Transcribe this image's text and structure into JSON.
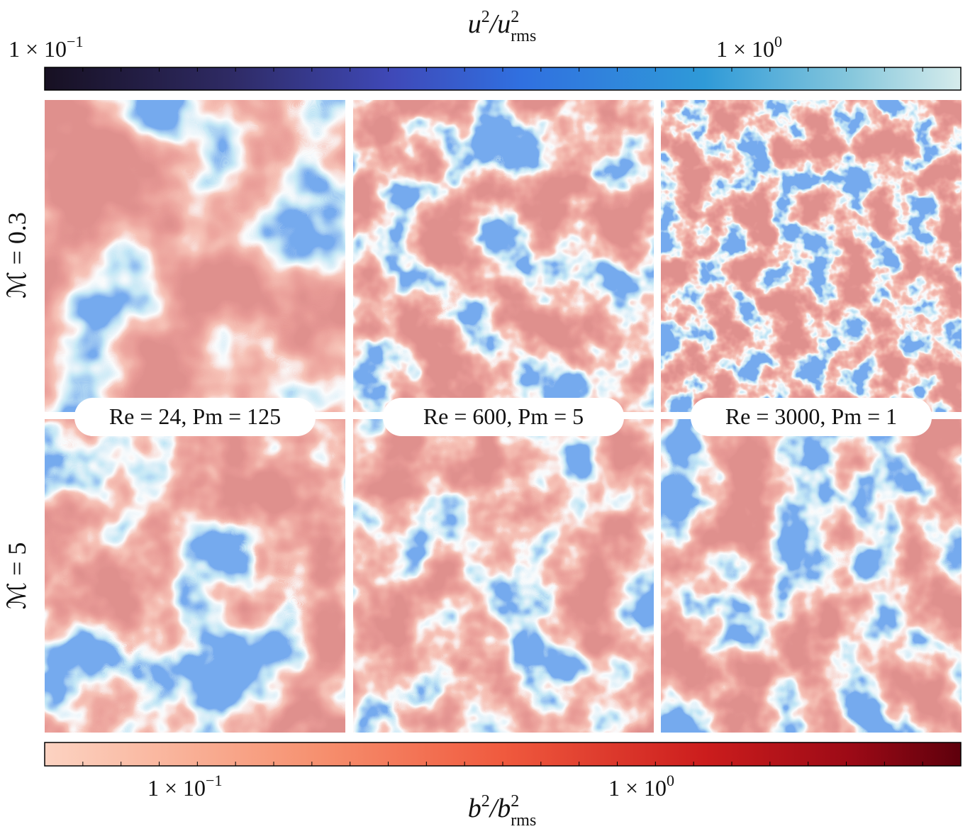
{
  "top_colorbar": {
    "title": {
      "numerator": "u",
      "numerator_exponent": "2",
      "denominator": "u",
      "denominator_exponent": "2",
      "denominator_subscript": "rms"
    },
    "ticks": [
      {
        "mantissa": "1 × 10",
        "exponent": "−1"
      },
      {
        "mantissa": "1 × 10",
        "exponent": "0"
      }
    ]
  },
  "bottom_colorbar": {
    "title": {
      "numerator": "b",
      "numerator_exponent": "2",
      "denominator": "b",
      "denominator_exponent": "2",
      "denominator_subscript": "rms"
    },
    "ticks": [
      {
        "mantissa": "1 × 10",
        "exponent": "−1"
      },
      {
        "mantissa": "1 × 10",
        "exponent": "0"
      }
    ]
  },
  "rows": [
    "ℳ = 0.3",
    "ℳ = 5"
  ],
  "columns": [
    "Re = 24, Pm = 125",
    "Re = 600, Pm = 5",
    "Re = 3000, Pm = 1"
  ]
}
